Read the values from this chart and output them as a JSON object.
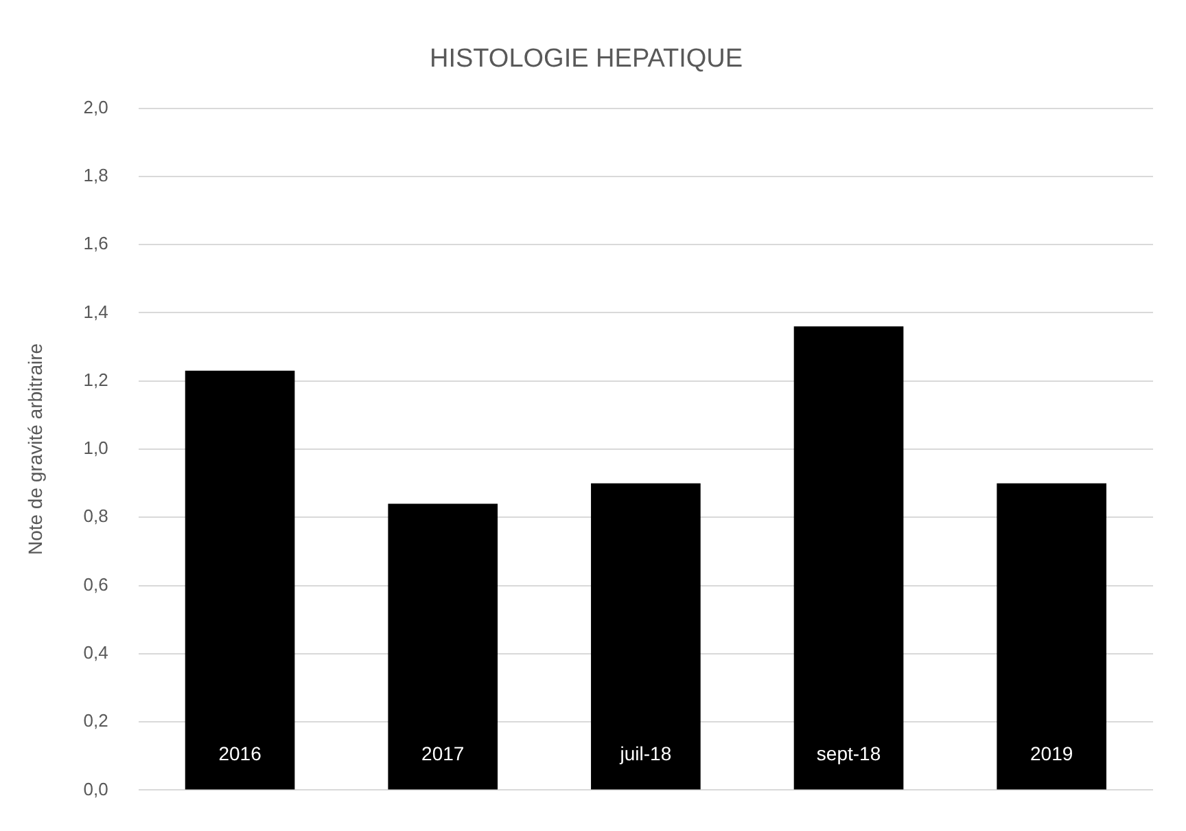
{
  "chart_data": {
    "type": "bar",
    "title": "HISTOLOGIE HEPATIQUE",
    "ylabel": "Note de gravité arbitraire",
    "categories": [
      "2016",
      "2017",
      "juil-18",
      "sept-18",
      "2019"
    ],
    "values": [
      1.23,
      0.84,
      0.9,
      1.36,
      0.9
    ],
    "color": "#000000",
    "ylim": [
      0,
      2
    ],
    "yticks": [
      {
        "value": 0,
        "label": "0,0"
      },
      {
        "value": 0.2,
        "label": "0,2"
      },
      {
        "value": 0.4,
        "label": "0,4"
      },
      {
        "value": 0.6,
        "label": "0,6"
      },
      {
        "value": 0.8,
        "label": "0,8"
      },
      {
        "value": 1,
        "label": "1,0"
      },
      {
        "value": 1.2,
        "label": "1,2"
      },
      {
        "value": 1.4,
        "label": "1,4"
      },
      {
        "value": 1.6,
        "label": "1,6"
      },
      {
        "value": 1.8,
        "label": "1,8"
      },
      {
        "value": 2,
        "label": "2,0"
      }
    ],
    "grid": "y",
    "legend": false
  }
}
